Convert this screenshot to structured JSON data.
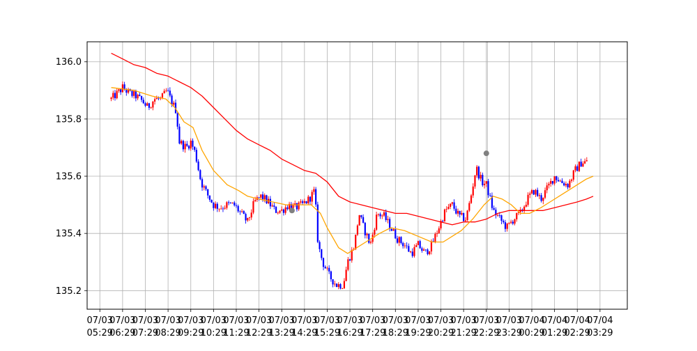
{
  "chart_data": {
    "type": "candlestick",
    "title": "",
    "xlabel": "",
    "ylabel": "",
    "ylim": [
      135.135,
      136.07
    ],
    "grid": true,
    "colors": {
      "up": "#ff0000",
      "down": "#0000ff",
      "ma_fast": "#ffa500",
      "ma_slow": "#ff0000",
      "markers": "#808080"
    },
    "x_ticks": [
      {
        "t": 0,
        "date": "07/03",
        "time": "05:29"
      },
      {
        "t": 1,
        "date": "07/03",
        "time": "06:29"
      },
      {
        "t": 2,
        "date": "07/03",
        "time": "07:29"
      },
      {
        "t": 3,
        "date": "07/03",
        "time": "08:29"
      },
      {
        "t": 4,
        "date": "07/03",
        "time": "09:29"
      },
      {
        "t": 5,
        "date": "07/03",
        "time": "10:29"
      },
      {
        "t": 6,
        "date": "07/03",
        "time": "11:29"
      },
      {
        "t": 7,
        "date": "07/03",
        "time": "12:29"
      },
      {
        "t": 8,
        "date": "07/03",
        "time": "13:29"
      },
      {
        "t": 9,
        "date": "07/03",
        "time": "14:29"
      },
      {
        "t": 10,
        "date": "07/03",
        "time": "15:29"
      },
      {
        "t": 11,
        "date": "07/03",
        "time": "16:29"
      },
      {
        "t": 12,
        "date": "07/03",
        "time": "17:29"
      },
      {
        "t": 13,
        "date": "07/03",
        "time": "18:29"
      },
      {
        "t": 14,
        "date": "07/03",
        "time": "19:29"
      },
      {
        "t": 15,
        "date": "07/03",
        "time": "20:29"
      },
      {
        "t": 16,
        "date": "07/03",
        "time": "21:29"
      },
      {
        "t": 17,
        "date": "07/03",
        "time": "22:29"
      },
      {
        "t": 18,
        "date": "07/03",
        "time": "23:29"
      },
      {
        "t": 19,
        "date": "07/04",
        "time": "00:29"
      },
      {
        "t": 20,
        "date": "07/04",
        "time": "01:29"
      },
      {
        "t": 21,
        "date": "07/04",
        "time": "02:29"
      },
      {
        "t": 22,
        "date": "07/04",
        "time": "03:29"
      }
    ],
    "x_range": [
      -0.56,
      23.2
    ],
    "y_ticks": [
      135.2,
      135.4,
      135.6,
      135.8,
      136.0
    ],
    "y_tick_labels": [
      "135.2",
      "135.4",
      "135.6",
      "135.8",
      "136.0"
    ],
    "close_path": [
      [
        0.5,
        135.87
      ],
      [
        0.9,
        135.9
      ],
      [
        1.0,
        135.91
      ],
      [
        1.3,
        135.89
      ],
      [
        1.6,
        135.88
      ],
      [
        1.9,
        135.86
      ],
      [
        2.1,
        135.84
      ],
      [
        2.4,
        135.87
      ],
      [
        2.7,
        135.87
      ],
      [
        2.95,
        135.9
      ],
      [
        3.1,
        135.87
      ],
      [
        3.35,
        135.83
      ],
      [
        3.5,
        135.72
      ],
      [
        3.8,
        135.7
      ],
      [
        4.0,
        135.72
      ],
      [
        4.2,
        135.68
      ],
      [
        4.45,
        135.58
      ],
      [
        4.7,
        135.54
      ],
      [
        5.0,
        135.5
      ],
      [
        5.3,
        135.49
      ],
      [
        5.6,
        135.5
      ],
      [
        5.9,
        135.5
      ],
      [
        6.2,
        135.47
      ],
      [
        6.5,
        135.44
      ],
      [
        6.8,
        135.51
      ],
      [
        7.1,
        135.53
      ],
      [
        7.4,
        135.51
      ],
      [
        7.7,
        135.48
      ],
      [
        8.0,
        135.48
      ],
      [
        8.3,
        135.5
      ],
      [
        8.6,
        135.49
      ],
      [
        8.9,
        135.5
      ],
      [
        9.2,
        135.52
      ],
      [
        9.45,
        135.55
      ],
      [
        9.6,
        135.36
      ],
      [
        9.8,
        135.3
      ],
      [
        10.1,
        135.25
      ],
      [
        10.4,
        135.22
      ],
      [
        10.7,
        135.22
      ],
      [
        10.9,
        135.3
      ],
      [
        11.2,
        135.36
      ],
      [
        11.4,
        135.47
      ],
      [
        11.6,
        135.42
      ],
      [
        11.9,
        135.36
      ],
      [
        12.2,
        135.47
      ],
      [
        12.5,
        135.46
      ],
      [
        12.8,
        135.42
      ],
      [
        13.1,
        135.38
      ],
      [
        13.4,
        135.36
      ],
      [
        13.7,
        135.33
      ],
      [
        14.0,
        135.36
      ],
      [
        14.3,
        135.33
      ],
      [
        14.6,
        135.36
      ],
      [
        14.9,
        135.42
      ],
      [
        15.2,
        135.48
      ],
      [
        15.5,
        135.5
      ],
      [
        15.8,
        135.46
      ],
      [
        16.1,
        135.45
      ],
      [
        16.3,
        135.52
      ],
      [
        16.55,
        135.63
      ],
      [
        16.8,
        135.58
      ],
      [
        17.0,
        135.57
      ],
      [
        17.3,
        135.48
      ],
      [
        17.6,
        135.45
      ],
      [
        17.9,
        135.42
      ],
      [
        18.2,
        135.45
      ],
      [
        18.5,
        135.47
      ],
      [
        18.8,
        135.52
      ],
      [
        19.1,
        135.55
      ],
      [
        19.4,
        135.52
      ],
      [
        19.7,
        135.56
      ],
      [
        20.0,
        135.6
      ],
      [
        20.3,
        135.58
      ],
      [
        20.6,
        135.57
      ],
      [
        20.9,
        135.62
      ],
      [
        21.2,
        135.65
      ],
      [
        21.45,
        135.65
      ]
    ],
    "ma_fast_points": [
      [
        0.5,
        135.91
      ],
      [
        1.5,
        135.9
      ],
      [
        2.3,
        135.88
      ],
      [
        2.9,
        135.87
      ],
      [
        3.3,
        135.84
      ],
      [
        3.7,
        135.79
      ],
      [
        4.1,
        135.77
      ],
      [
        4.5,
        135.69
      ],
      [
        5.0,
        135.62
      ],
      [
        5.6,
        135.57
      ],
      [
        6.1,
        135.55
      ],
      [
        6.5,
        135.53
      ],
      [
        7.0,
        135.52
      ],
      [
        7.6,
        135.51
      ],
      [
        8.2,
        135.5
      ],
      [
        8.8,
        135.5
      ],
      [
        9.3,
        135.5
      ],
      [
        9.7,
        135.47
      ],
      [
        10.0,
        135.42
      ],
      [
        10.5,
        135.35
      ],
      [
        10.9,
        135.33
      ],
      [
        11.3,
        135.35
      ],
      [
        11.7,
        135.37
      ],
      [
        12.3,
        135.4
      ],
      [
        12.8,
        135.42
      ],
      [
        13.4,
        135.41
      ],
      [
        14.0,
        135.39
      ],
      [
        14.6,
        135.37
      ],
      [
        15.1,
        135.37
      ],
      [
        15.5,
        135.39
      ],
      [
        15.9,
        135.41
      ],
      [
        16.4,
        135.45
      ],
      [
        16.9,
        135.5
      ],
      [
        17.3,
        135.53
      ],
      [
        17.7,
        135.52
      ],
      [
        18.1,
        135.5
      ],
      [
        18.5,
        135.47
      ],
      [
        18.9,
        135.47
      ],
      [
        19.4,
        135.49
      ],
      [
        19.8,
        135.51
      ],
      [
        20.2,
        135.53
      ],
      [
        20.6,
        135.55
      ],
      [
        21.0,
        135.57
      ],
      [
        21.4,
        135.59
      ],
      [
        21.7,
        135.6
      ]
    ],
    "ma_slow_points": [
      [
        0.5,
        136.03
      ],
      [
        1.0,
        136.01
      ],
      [
        1.5,
        135.99
      ],
      [
        2.0,
        135.98
      ],
      [
        2.5,
        135.96
      ],
      [
        3.0,
        135.95
      ],
      [
        3.5,
        135.93
      ],
      [
        4.0,
        135.91
      ],
      [
        4.5,
        135.88
      ],
      [
        5.0,
        135.84
      ],
      [
        5.5,
        135.8
      ],
      [
        6.0,
        135.76
      ],
      [
        6.5,
        135.73
      ],
      [
        7.0,
        135.71
      ],
      [
        7.5,
        135.69
      ],
      [
        8.0,
        135.66
      ],
      [
        8.5,
        135.64
      ],
      [
        9.0,
        135.62
      ],
      [
        9.5,
        135.61
      ],
      [
        10.0,
        135.58
      ],
      [
        10.5,
        135.53
      ],
      [
        11.0,
        135.51
      ],
      [
        11.5,
        135.5
      ],
      [
        12.0,
        135.49
      ],
      [
        12.5,
        135.48
      ],
      [
        13.0,
        135.47
      ],
      [
        13.5,
        135.47
      ],
      [
        14.0,
        135.46
      ],
      [
        14.5,
        135.45
      ],
      [
        15.0,
        135.44
      ],
      [
        15.5,
        135.43
      ],
      [
        16.0,
        135.44
      ],
      [
        16.5,
        135.44
      ],
      [
        17.0,
        135.45
      ],
      [
        17.5,
        135.47
      ],
      [
        18.0,
        135.48
      ],
      [
        18.5,
        135.48
      ],
      [
        19.0,
        135.48
      ],
      [
        19.5,
        135.48
      ],
      [
        20.0,
        135.49
      ],
      [
        20.5,
        135.5
      ],
      [
        21.0,
        135.51
      ],
      [
        21.4,
        135.52
      ],
      [
        21.7,
        135.53
      ]
    ],
    "markers": [
      {
        "x": 8.45,
        "y": 135.48
      },
      {
        "x": 17.0,
        "y": 135.68
      }
    ],
    "vlines": [
      17.0
    ]
  }
}
